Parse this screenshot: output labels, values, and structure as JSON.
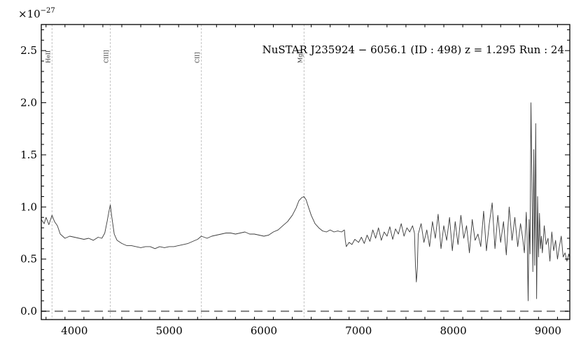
{
  "chart_data": {
    "type": "line",
    "title": "NuSTAR J235924 − 6056.1 (ID : 498)   z = 1.295   Run : 24",
    "y_multiplier": {
      "base": "×10",
      "exponent": "−27"
    },
    "xlabel": "",
    "ylabel": "",
    "xlim": [
      3650,
      9230
    ],
    "ylim": [
      -0.08,
      2.75
    ],
    "x_ticks": [
      4000,
      5000,
      6000,
      7000,
      8000,
      9000
    ],
    "y_ticks": [
      0.0,
      0.5,
      1.0,
      1.5,
      2.0,
      2.5
    ],
    "y_tick_labels": [
      "0.0",
      "0.5",
      "1.0",
      "1.5",
      "2.0",
      "2.5"
    ],
    "grid": false,
    "colors": {
      "spectrum": "#3a3a3a",
      "reference_lines": "#bbbbbb",
      "zero_line": "#808080",
      "axes": "#000000"
    },
    "emission_lines": [
      {
        "label": "HeII",
        "x": 3763
      },
      {
        "label": "CIII]",
        "x": 4379
      },
      {
        "label": "CII]",
        "x": 5340
      },
      {
        "label": "MgII",
        "x": 6424
      }
    ],
    "zero_line": {
      "y": 0.0,
      "style": "dashed"
    },
    "series": [
      {
        "x": [
          3650,
          3680,
          3700,
          3730,
          3763,
          3790,
          3820,
          3850,
          3900,
          3950,
          4000,
          4050,
          4100,
          4150,
          4200,
          4250,
          4290,
          4320,
          4345,
          4365,
          4379,
          4395,
          4420,
          4450,
          4500,
          4550,
          4600,
          4650,
          4700,
          4750,
          4800,
          4850,
          4900,
          4950,
          5000,
          5050,
          5100,
          5150,
          5200,
          5250,
          5300,
          5340,
          5400,
          5450,
          5500,
          5550,
          5600,
          5650,
          5700,
          5750,
          5800,
          5850,
          5900,
          5950,
          6000,
          6050,
          6100,
          6150,
          6200,
          6250,
          6300,
          6340,
          6370,
          6400,
          6424,
          6445,
          6470,
          6500,
          6540,
          6580,
          6620,
          6660,
          6700,
          6740,
          6780,
          6820,
          6850,
          6860,
          6870,
          6900,
          6930,
          6960,
          7000,
          7030,
          7060,
          7090,
          7120,
          7150,
          7180,
          7210,
          7240,
          7270,
          7300,
          7330,
          7360,
          7390,
          7420,
          7450,
          7480,
          7510,
          7540,
          7570,
          7590,
          7600,
          7610,
          7620,
          7630,
          7660,
          7690,
          7720,
          7750,
          7780,
          7810,
          7840,
          7870,
          7900,
          7930,
          7960,
          7990,
          8020,
          8050,
          8080,
          8110,
          8140,
          8170,
          8200,
          8230,
          8260,
          8290,
          8320,
          8350,
          8380,
          8410,
          8440,
          8470,
          8500,
          8530,
          8560,
          8590,
          8620,
          8650,
          8680,
          8710,
          8730,
          8750,
          8770,
          8780,
          8790,
          8800,
          8810,
          8820,
          8830,
          8840,
          8850,
          8860,
          8870,
          8880,
          8890,
          8900,
          8910,
          8920,
          8930,
          8940,
          8960,
          8980,
          9000,
          9020,
          9040,
          9060,
          9080,
          9100,
          9120,
          9140,
          9160,
          9180,
          9200,
          9220,
          9230
        ],
        "y": [
          0.88,
          0.84,
          0.9,
          0.83,
          0.92,
          0.86,
          0.82,
          0.74,
          0.7,
          0.72,
          0.71,
          0.7,
          0.69,
          0.7,
          0.68,
          0.71,
          0.7,
          0.75,
          0.86,
          0.96,
          1.02,
          0.9,
          0.74,
          0.68,
          0.65,
          0.63,
          0.63,
          0.62,
          0.61,
          0.62,
          0.62,
          0.6,
          0.62,
          0.61,
          0.62,
          0.62,
          0.63,
          0.64,
          0.65,
          0.67,
          0.69,
          0.72,
          0.7,
          0.72,
          0.73,
          0.74,
          0.75,
          0.75,
          0.74,
          0.75,
          0.76,
          0.74,
          0.74,
          0.73,
          0.72,
          0.73,
          0.76,
          0.78,
          0.82,
          0.86,
          0.92,
          0.99,
          1.06,
          1.09,
          1.1,
          1.07,
          1.0,
          0.92,
          0.84,
          0.8,
          0.77,
          0.76,
          0.78,
          0.76,
          0.77,
          0.76,
          0.78,
          0.68,
          0.62,
          0.66,
          0.64,
          0.69,
          0.66,
          0.71,
          0.65,
          0.73,
          0.67,
          0.78,
          0.7,
          0.8,
          0.68,
          0.76,
          0.72,
          0.81,
          0.69,
          0.79,
          0.74,
          0.84,
          0.72,
          0.8,
          0.76,
          0.82,
          0.75,
          0.44,
          0.28,
          0.41,
          0.74,
          0.84,
          0.66,
          0.78,
          0.62,
          0.86,
          0.7,
          0.93,
          0.6,
          0.82,
          0.68,
          0.9,
          0.58,
          0.86,
          0.64,
          0.92,
          0.7,
          0.82,
          0.56,
          0.88,
          0.68,
          0.74,
          0.62,
          0.96,
          0.58,
          0.84,
          1.04,
          0.6,
          0.92,
          0.66,
          0.86,
          0.54,
          1.0,
          0.68,
          0.9,
          0.62,
          0.84,
          0.72,
          0.56,
          0.95,
          0.7,
          0.1,
          0.88,
          0.55,
          2.0,
          1.25,
          0.38,
          1.55,
          0.44,
          1.8,
          0.12,
          1.1,
          0.52,
          0.94,
          0.6,
          0.72,
          0.56,
          0.82,
          0.64,
          0.7,
          0.48,
          0.76,
          0.58,
          0.68,
          0.5,
          0.62,
          0.72,
          0.52,
          0.56,
          0.48,
          0.55,
          0.5
        ]
      }
    ]
  }
}
